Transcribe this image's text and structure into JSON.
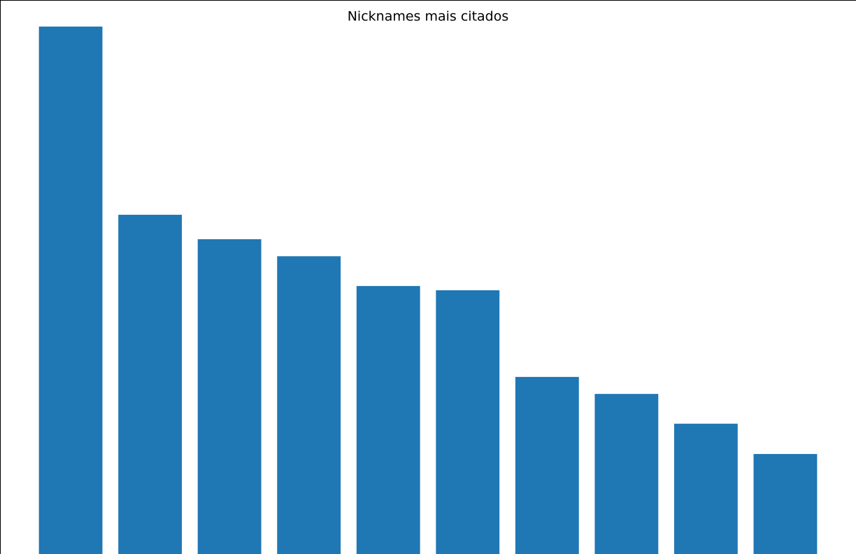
{
  "chart_data": {
    "type": "bar",
    "title": "Nicknames mais citados",
    "categories": [
      null,
      null,
      null,
      null,
      null,
      null,
      null,
      null,
      null,
      null
    ],
    "values": [
      100,
      64.6,
      60,
      56.8,
      51.2,
      50.4,
      34.1,
      30.9,
      25.3,
      19.6
    ],
    "color": "#1f77b4",
    "ylim": [
      0,
      105
    ]
  }
}
